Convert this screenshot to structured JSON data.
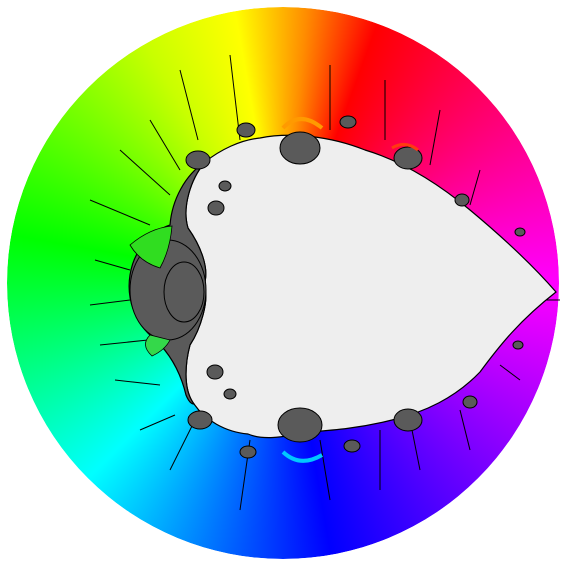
{
  "figure": {
    "background": "#ffffff",
    "interior_fill": "#eeeeee",
    "bulb_fill": "#5a5a5a",
    "outline": "#000000",
    "color_wheel": [
      "#ff0000",
      "#ffff00",
      "#00ff00",
      "#00ffff",
      "#0000ff",
      "#ff00ff"
    ]
  }
}
